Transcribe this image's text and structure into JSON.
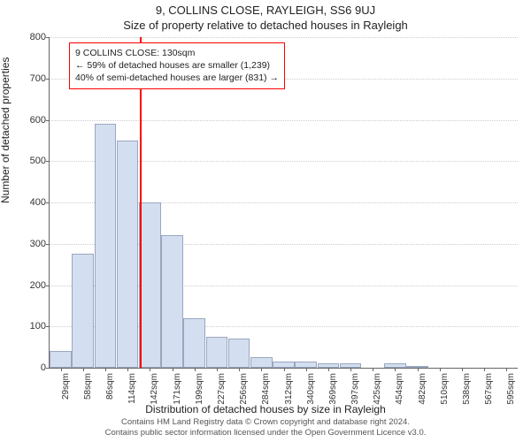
{
  "header": {
    "address": "9, COLLINS CLOSE, RAYLEIGH, SS6 9UJ",
    "subtitle": "Size of property relative to detached houses in Rayleigh"
  },
  "chart": {
    "type": "histogram",
    "x_categories": [
      "29sqm",
      "58sqm",
      "86sqm",
      "114sqm",
      "142sqm",
      "171sqm",
      "199sqm",
      "227sqm",
      "256sqm",
      "284sqm",
      "312sqm",
      "340sqm",
      "369sqm",
      "397sqm",
      "425sqm",
      "454sqm",
      "482sqm",
      "510sqm",
      "538sqm",
      "567sqm",
      "595sqm"
    ],
    "values": [
      40,
      275,
      590,
      550,
      400,
      320,
      120,
      75,
      70,
      25,
      15,
      15,
      10,
      10,
      0,
      10,
      5,
      0,
      0,
      0,
      0
    ],
    "bar_fill": "#d3def0",
    "bar_stroke": "#9aa7bf",
    "ylim": [
      0,
      800
    ],
    "ytick_step": 100,
    "y_axis_label": "Number of detached properties",
    "x_axis_label": "Distribution of detached houses by size in Rayleigh",
    "grid_color": "#cccccc",
    "background_color": "#ffffff",
    "marker": {
      "x_value_sqm": 130,
      "x_range": [
        29,
        595
      ],
      "color": "#ff0000"
    },
    "annotation": {
      "line1": "9 COLLINS CLOSE: 130sqm",
      "line2": "← 59% of detached houses are smaller (1,239)",
      "line3": "40% of semi-detached houses are larger (831) →",
      "border_color": "#ff0000",
      "background_color": "#ffffff"
    }
  },
  "footer": {
    "line1": "Contains HM Land Registry data © Crown copyright and database right 2024.",
    "line2": "Contains public sector information licensed under the Open Government Licence v3.0."
  }
}
